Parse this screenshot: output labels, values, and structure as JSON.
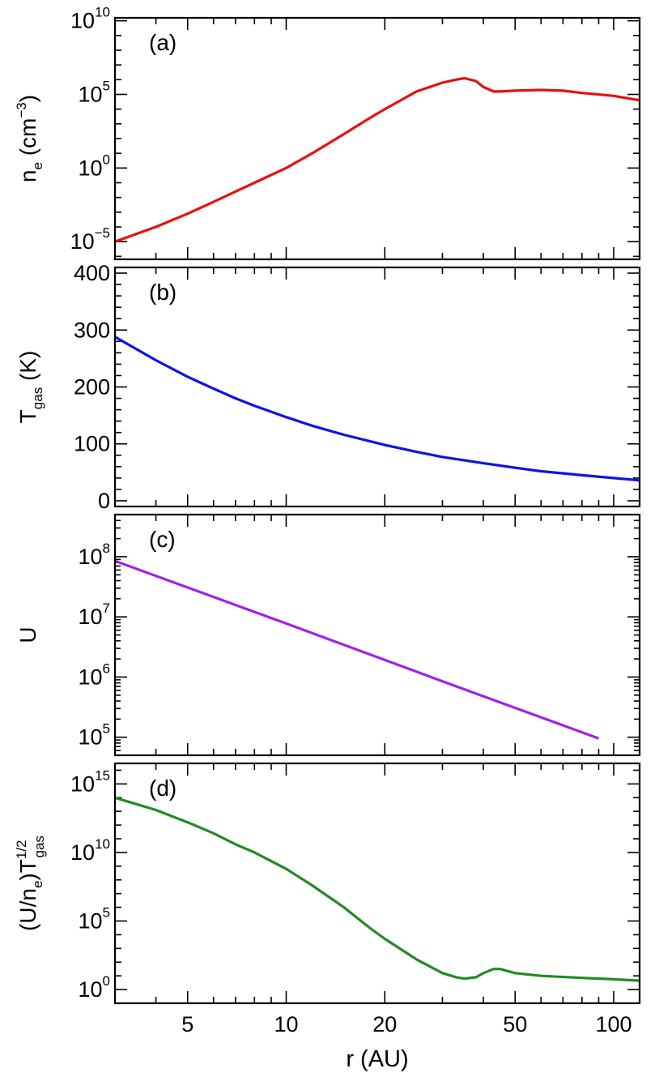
{
  "chart_data": [
    {
      "panel_label": "(a)",
      "type": "line",
      "ylabel": {
        "main": "n",
        "sub": "e",
        "unit_open": " (cm",
        "unit_sup": "−3",
        "unit_close": ")"
      },
      "yscale": "log",
      "ylim_exp": [
        -6.2,
        10.2
      ],
      "yticks": [
        {
          "base": "10",
          "exp": "10"
        },
        {
          "base": "10",
          "exp": "5"
        },
        {
          "base": "10",
          "exp": "0"
        },
        {
          "base": "10",
          "exp": "−5"
        }
      ],
      "color": "#e8100c",
      "series": {
        "x": [
          3,
          4,
          5,
          6,
          7,
          8,
          10,
          12,
          15,
          18,
          20,
          25,
          30,
          33,
          35,
          38,
          40,
          43,
          45,
          50,
          60,
          70,
          80,
          100,
          120
        ],
        "log10_y": [
          -5.0,
          -4.0,
          -3.1,
          -2.3,
          -1.6,
          -1.0,
          0.0,
          1.0,
          2.3,
          3.4,
          4.0,
          5.2,
          5.8,
          6.0,
          6.1,
          5.9,
          5.5,
          5.2,
          5.2,
          5.25,
          5.3,
          5.25,
          5.1,
          4.9,
          4.6
        ]
      }
    },
    {
      "panel_label": "(b)",
      "type": "line",
      "ylabel": {
        "main": "T",
        "sub": "gas",
        "unit_open": " (K)",
        "unit_sup": "",
        "unit_close": ""
      },
      "yscale": "linear",
      "ylim": [
        -10,
        410
      ],
      "yticks": [
        {
          "base": "400",
          "exp": ""
        },
        {
          "base": "300",
          "exp": ""
        },
        {
          "base": "200",
          "exp": ""
        },
        {
          "base": "100",
          "exp": ""
        },
        {
          "base": "0",
          "exp": ""
        }
      ],
      "color": "#0a14e8",
      "series": {
        "x": [
          3,
          4,
          5,
          6,
          7,
          8,
          10,
          12,
          15,
          20,
          25,
          30,
          40,
          50,
          60,
          80,
          100,
          120
        ],
        "y": [
          288,
          247,
          218,
          197,
          180,
          167,
          147,
          132,
          116,
          98,
          86,
          77,
          66,
          58,
          52,
          45,
          40,
          36
        ]
      }
    },
    {
      "panel_label": "(c)",
      "type": "line",
      "ylabel": {
        "main": "U",
        "sub": "",
        "unit_open": "",
        "unit_sup": "",
        "unit_close": ""
      },
      "yscale": "log",
      "ylim_exp": [
        4.7,
        8.7
      ],
      "yticks": [
        {
          "base": "10",
          "exp": "8"
        },
        {
          "base": "10",
          "exp": "7"
        },
        {
          "base": "10",
          "exp": "6"
        },
        {
          "base": "10",
          "exp": "5"
        }
      ],
      "color": "#a020f0",
      "series": {
        "x": [
          3,
          10,
          30,
          90
        ],
        "log10_y": [
          7.93,
          6.89,
          5.93,
          4.98
        ]
      }
    },
    {
      "panel_label": "(d)",
      "type": "line",
      "ylabel": {
        "main": "(U/n",
        "sub": "e",
        "unit_open": ")T",
        "unit_sup": "1/2",
        "sub2": "gas",
        "unit_close": ""
      },
      "yscale": "log",
      "ylim_exp": [
        -1,
        16.5
      ],
      "yticks": [
        {
          "base": "10",
          "exp": "15"
        },
        {
          "base": "10",
          "exp": "10"
        },
        {
          "base": "10",
          "exp": "5"
        },
        {
          "base": "10",
          "exp": "0"
        }
      ],
      "color": "#228b22",
      "series": {
        "x": [
          3,
          4,
          5,
          6,
          7,
          8,
          10,
          12,
          15,
          18,
          20,
          25,
          30,
          33,
          35,
          38,
          40,
          43,
          45,
          50,
          60,
          80,
          100,
          120
        ],
        "log10_y": [
          14.0,
          13.1,
          12.2,
          11.4,
          10.6,
          10.0,
          8.8,
          7.6,
          6.0,
          4.5,
          3.7,
          2.2,
          1.2,
          0.9,
          0.8,
          0.9,
          1.2,
          1.5,
          1.5,
          1.2,
          1.0,
          0.85,
          0.75,
          0.65
        ]
      }
    }
  ],
  "x_axis": {
    "scale": "log",
    "xlim": [
      3,
      120
    ],
    "tick_labels": [
      "5",
      "10",
      "20",
      "50",
      "100"
    ],
    "tick_values": [
      5,
      10,
      20,
      50,
      100
    ],
    "xlabel": "r (AU)"
  }
}
